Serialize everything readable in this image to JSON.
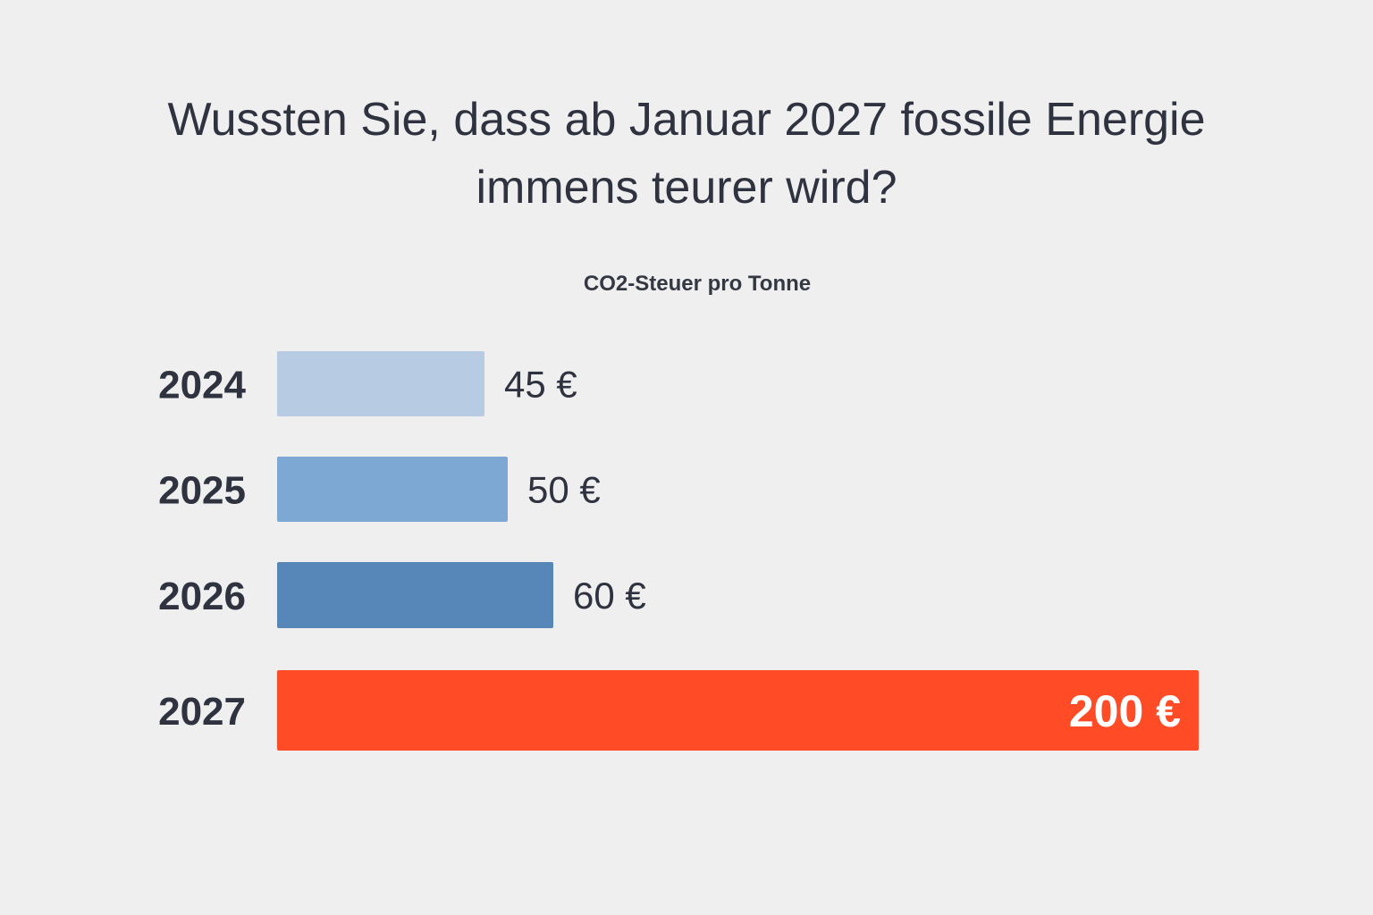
{
  "headline": {
    "line1": "Wussten Sie, dass ab Januar 2027 fossile Energie",
    "line2": "immens teurer wird?"
  },
  "chart_data": {
    "type": "bar",
    "orientation": "horizontal",
    "title": "CO2-Steuer pro Tonne",
    "xlabel": "",
    "ylabel": "",
    "categories": [
      "2024",
      "2025",
      "2026",
      "2027"
    ],
    "values": [
      45,
      50,
      60,
      200
    ],
    "value_labels": [
      "45 €",
      "50 €",
      "60 €",
      "200 €"
    ],
    "unit": "€",
    "highlight_category": "2027",
    "colors": [
      "#b7cbe3",
      "#7ea8d4",
      "#5787b8",
      "#ff4b26"
    ],
    "grid": false,
    "legend": "none",
    "axes_visible": false
  }
}
